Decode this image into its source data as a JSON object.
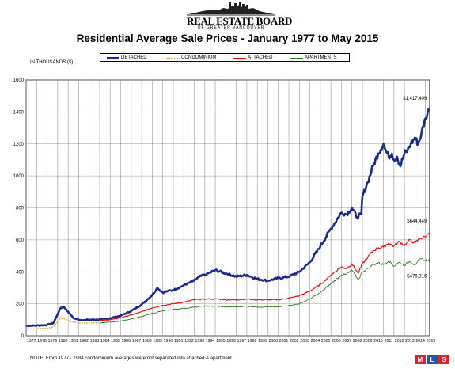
{
  "header": {
    "logo_text": "REAL ESTATE BOARD",
    "logo_subtext": "OF GREATER VANCOUVER",
    "title": "Residential Average Sale Prices  -  January 1977 to May 2015"
  },
  "unit_label": "IN THOUSANDS ($)",
  "note": "NOTE:  From 1977 - 1984 condominium averages were not separated into attached & apartment.",
  "mls_logo": "MLS",
  "chart_data": {
    "type": "line",
    "title": "Residential Average Sale Prices  -  January 1977 to May 2015",
    "ylabel": "IN THOUSANDS ($)",
    "ylim": [
      0,
      1600
    ],
    "yticks": [
      0,
      200,
      400,
      600,
      800,
      1000,
      1200,
      1400,
      1600
    ],
    "xlim": [
      1977,
      2015.4
    ],
    "xticks": [
      "1977",
      "1978",
      "1979",
      "1980",
      "1981",
      "1982",
      "1983",
      "1984",
      "1985",
      "1986",
      "1987",
      "1988",
      "1989",
      "1990",
      "1991",
      "1992",
      "1993",
      "1994",
      "1995",
      "1996",
      "1997",
      "1998",
      "1999",
      "2000",
      "2001",
      "2002",
      "2003",
      "2004",
      "2005",
      "2006",
      "2007",
      "2008",
      "2009",
      "2010",
      "2011",
      "2012",
      "2013",
      "2014",
      "2015"
    ],
    "grid": true,
    "legend_position": "top",
    "series": [
      {
        "name": "DETACHED",
        "color": "#1a2a8c",
        "style": "solid-thick",
        "x": [
          1977,
          1978,
          1979,
          1979.6,
          1980,
          1980.3,
          1980.6,
          1981,
          1981.5,
          1982,
          1982.5,
          1983,
          1984,
          1985,
          1986,
          1987,
          1988,
          1989,
          1989.5,
          1990,
          1990.5,
          1991,
          1992,
          1993,
          1993.5,
          1994,
          1994.5,
          1995,
          1996,
          1997,
          1998,
          1999,
          2000,
          2001,
          2002,
          2003,
          2004,
          2005,
          2006,
          2007,
          2007.5,
          2008,
          2008.5,
          2008.9,
          2009,
          2009.5,
          2010,
          2010.5,
          2011,
          2011.2,
          2011.5,
          2011.8,
          2012,
          2012.3,
          2012.6,
          2013,
          2013.3,
          2013.6,
          2014,
          2014.3,
          2014.6,
          2015,
          2015.35
        ],
        "y": [
          62,
          64,
          68,
          80,
          135,
          175,
          180,
          150,
          110,
          100,
          98,
          100,
          102,
          110,
          125,
          155,
          195,
          255,
          300,
          270,
          280,
          285,
          315,
          345,
          370,
          380,
          395,
          410,
          390,
          370,
          380,
          355,
          345,
          360,
          370,
          400,
          460,
          560,
          670,
          770,
          760,
          800,
          740,
          760,
          870,
          960,
          1060,
          1140,
          1200,
          1160,
          1120,
          1140,
          1100,
          1120,
          1060,
          1140,
          1160,
          1200,
          1240,
          1200,
          1260,
          1360,
          1417
        ]
      },
      {
        "name": "CONDOMINIUM",
        "color": "#e8950f",
        "style": "dotted",
        "x": [
          1977,
          1978,
          1979,
          1979.6,
          1980,
          1980.3,
          1980.6,
          1981,
          1981.5,
          1982,
          1983,
          1984
        ],
        "y": [
          42,
          43,
          45,
          55,
          85,
          110,
          108,
          95,
          85,
          80,
          80,
          82
        ]
      },
      {
        "name": "ATTACHED",
        "color": "#ee1111",
        "style": "solid",
        "x": [
          1984,
          1985,
          1986,
          1987,
          1988,
          1989,
          1990,
          1991,
          1992,
          1993,
          1994,
          1995,
          1996,
          1997,
          1998,
          1999,
          2000,
          2001,
          2002,
          2003,
          2004,
          2005,
          2006,
          2007,
          2007.5,
          2008,
          2008.6,
          2009,
          2009.5,
          2010,
          2010.5,
          2011,
          2011.5,
          2012,
          2012.5,
          2013,
          2013.5,
          2014,
          2014.5,
          2015,
          2015.35
        ],
        "y": [
          95,
          100,
          112,
          130,
          150,
          175,
          190,
          200,
          210,
          225,
          230,
          230,
          225,
          225,
          230,
          225,
          225,
          225,
          235,
          250,
          280,
          320,
          380,
          430,
          420,
          450,
          390,
          450,
          490,
          530,
          550,
          555,
          580,
          560,
          590,
          565,
          600,
          580,
          610,
          620,
          644.449
        ]
      },
      {
        "name": "APARTMENTS",
        "color": "#2d7a1e",
        "style": "solid-thin",
        "x": [
          1984,
          1985,
          1986,
          1987,
          1988,
          1989,
          1990,
          1991,
          1992,
          1993,
          1994,
          1995,
          1996,
          1997,
          1998,
          1999,
          2000,
          2001,
          2002,
          2003,
          2004,
          2005,
          2006,
          2007,
          2007.5,
          2008,
          2008.6,
          2009,
          2009.5,
          2010,
          2010.5,
          2011,
          2011.5,
          2012,
          2012.5,
          2013,
          2013.5,
          2014,
          2014.5,
          2015,
          2015.35
        ],
        "y": [
          80,
          85,
          92,
          105,
          120,
          140,
          155,
          165,
          170,
          180,
          185,
          185,
          180,
          180,
          185,
          180,
          180,
          180,
          190,
          200,
          230,
          270,
          325,
          380,
          385,
          410,
          350,
          400,
          420,
          445,
          455,
          445,
          470,
          435,
          460,
          440,
          465,
          445,
          480,
          470,
          476.916
        ]
      }
    ],
    "annotations": [
      {
        "text": "$1,417,409",
        "series": "DETACHED",
        "x": 2015.35,
        "y": 1417
      },
      {
        "text": "$644,449",
        "series": "ATTACHED",
        "x": 2015.35,
        "y": 644.449
      },
      {
        "text": "$476,916",
        "series": "APARTMENTS",
        "x": 2015.35,
        "y": 476.916
      }
    ]
  }
}
